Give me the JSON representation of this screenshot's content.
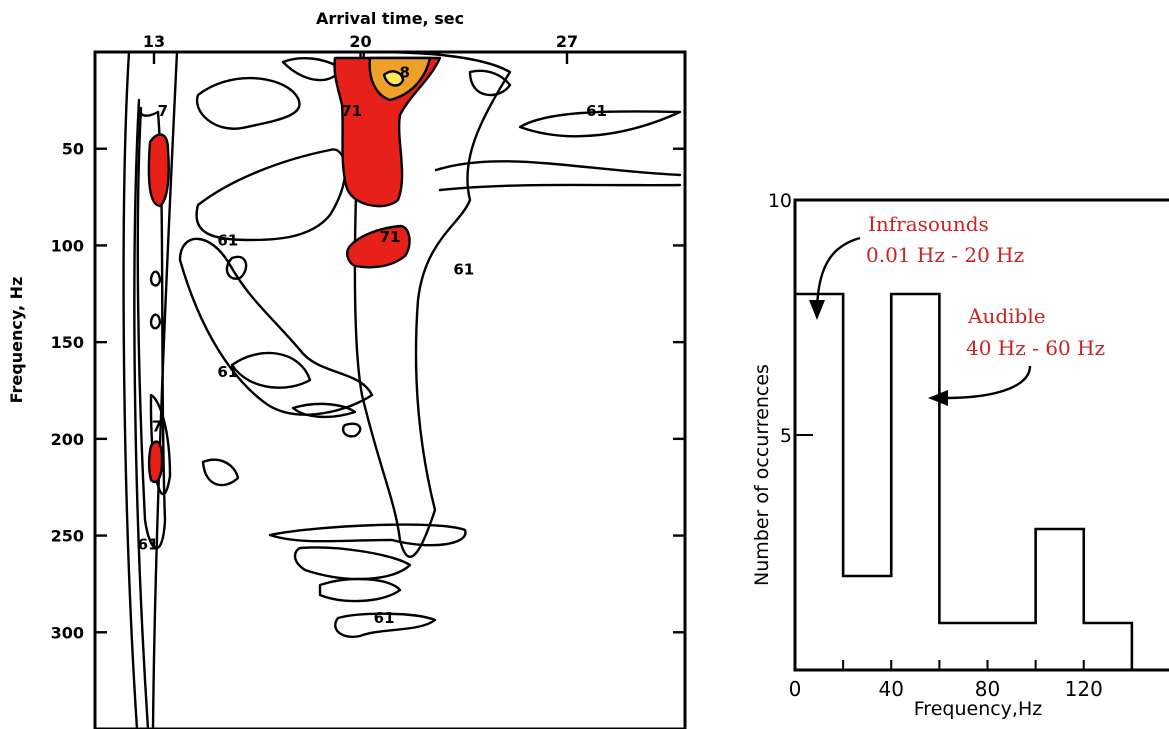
{
  "chart_data": [
    {
      "type": "heatmap",
      "title": "",
      "xlabel": "Arrival time, sec",
      "ylabel": "Frequency, Hz",
      "x_ticks": [
        13,
        20,
        27
      ],
      "y_ticks": [
        50,
        100,
        150,
        200,
        250,
        300
      ],
      "xlim": [
        11,
        31
      ],
      "ylim": [
        0,
        350
      ],
      "y_inverted": true,
      "x_axis_position": "top",
      "grid": false,
      "contour_levels": [
        {
          "label": "61",
          "fill": "none"
        },
        {
          "label": "71",
          "fill": "#e8201a"
        },
        {
          "label": "81",
          "fill": "#eda02a"
        }
      ],
      "contour_labels": [
        {
          "text": "7",
          "x": 13.3,
          "y": 30
        },
        {
          "text": "61",
          "x": 15.5,
          "y": 97
        },
        {
          "text": "61",
          "x": 15.5,
          "y": 165
        },
        {
          "text": "71",
          "x": 19.7,
          "y": 30
        },
        {
          "text": "8",
          "x": 21.5,
          "y": 10
        },
        {
          "text": "71",
          "x": 21.0,
          "y": 95
        },
        {
          "text": "61",
          "x": 28.0,
          "y": 30
        },
        {
          "text": "61",
          "x": 23.5,
          "y": 112
        },
        {
          "text": "7",
          "x": 13.1,
          "y": 193
        },
        {
          "text": "61",
          "x": 12.8,
          "y": 254
        },
        {
          "text": "61",
          "x": 20.8,
          "y": 292
        }
      ]
    },
    {
      "type": "bar",
      "title": "",
      "xlabel": "Frequency,Hz",
      "ylabel": "Number of occurrences",
      "x_ticks": [
        0,
        40,
        80,
        120
      ],
      "y_ticks": [
        5,
        10
      ],
      "xlim": [
        0,
        160
      ],
      "ylim": [
        0,
        10
      ],
      "grid": false,
      "bins": [
        {
          "from": 0,
          "to": 20,
          "value": 8
        },
        {
          "from": 20,
          "to": 40,
          "value": 2
        },
        {
          "from": 40,
          "to": 60,
          "value": 8
        },
        {
          "from": 60,
          "to": 100,
          "value": 1
        },
        {
          "from": 100,
          "to": 120,
          "value": 3
        },
        {
          "from": 120,
          "to": 140,
          "value": 1
        }
      ],
      "annotations": [
        {
          "lines": [
            "Infrasounds",
            "0.01 Hz  -  20 Hz"
          ],
          "color": "#cc2222",
          "points_to_x": 10
        },
        {
          "lines": [
            "Audible",
            "40 Hz  -  60 Hz"
          ],
          "color": "#cc2222",
          "points_to_x": 60
        }
      ]
    }
  ]
}
